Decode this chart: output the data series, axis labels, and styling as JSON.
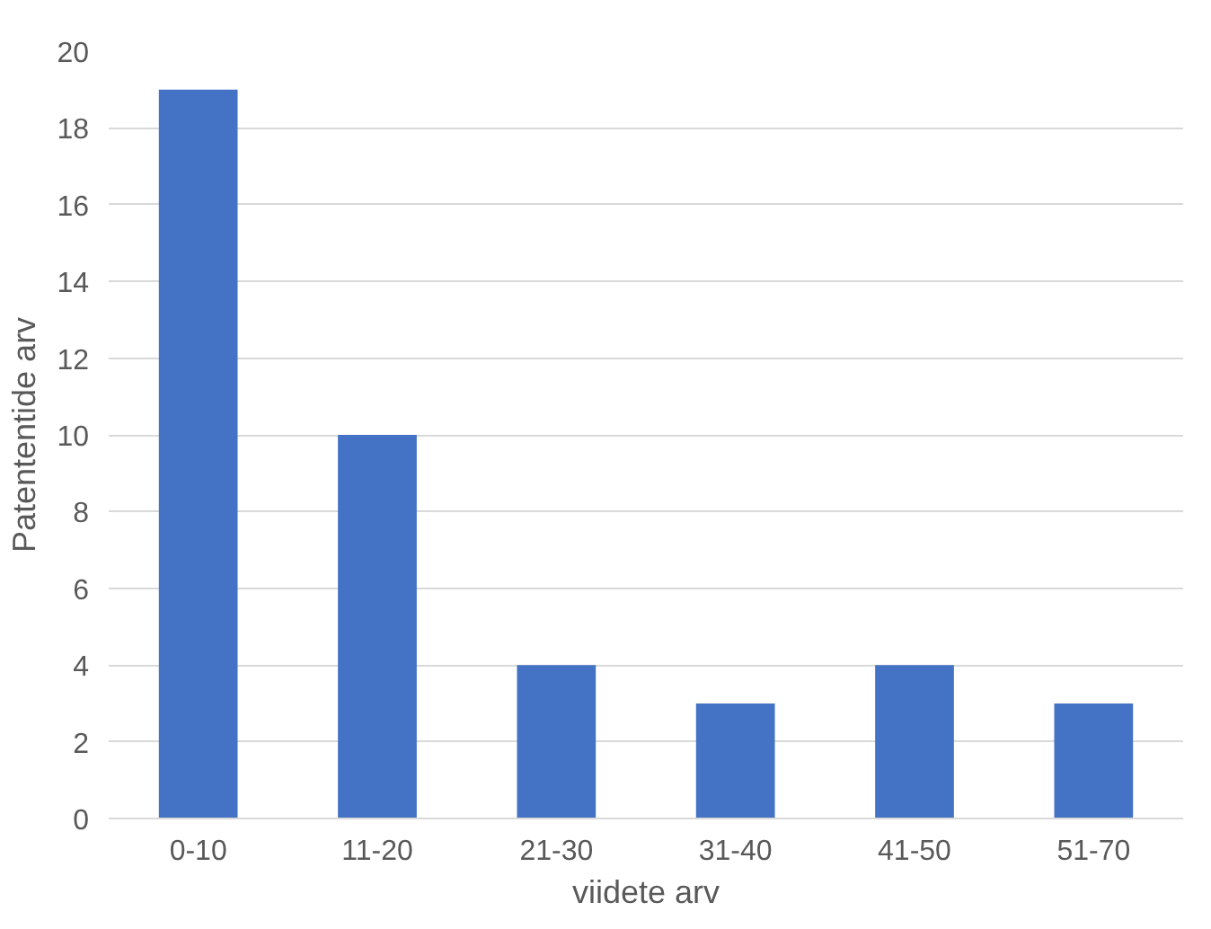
{
  "chart_data": {
    "type": "bar",
    "xlabel": "viidete arv",
    "ylabel": "Patententide arv",
    "categories": [
      "0-10",
      "11-20",
      "21-30",
      "31-40",
      "41-50",
      "51-70"
    ],
    "values": [
      19,
      10,
      4,
      3,
      4,
      3
    ],
    "color": "#4472c4",
    "ylim": [
      0,
      20
    ],
    "yticks": [
      0,
      2,
      4,
      6,
      8,
      10,
      12,
      14,
      16,
      18,
      20
    ],
    "grid": "y"
  }
}
